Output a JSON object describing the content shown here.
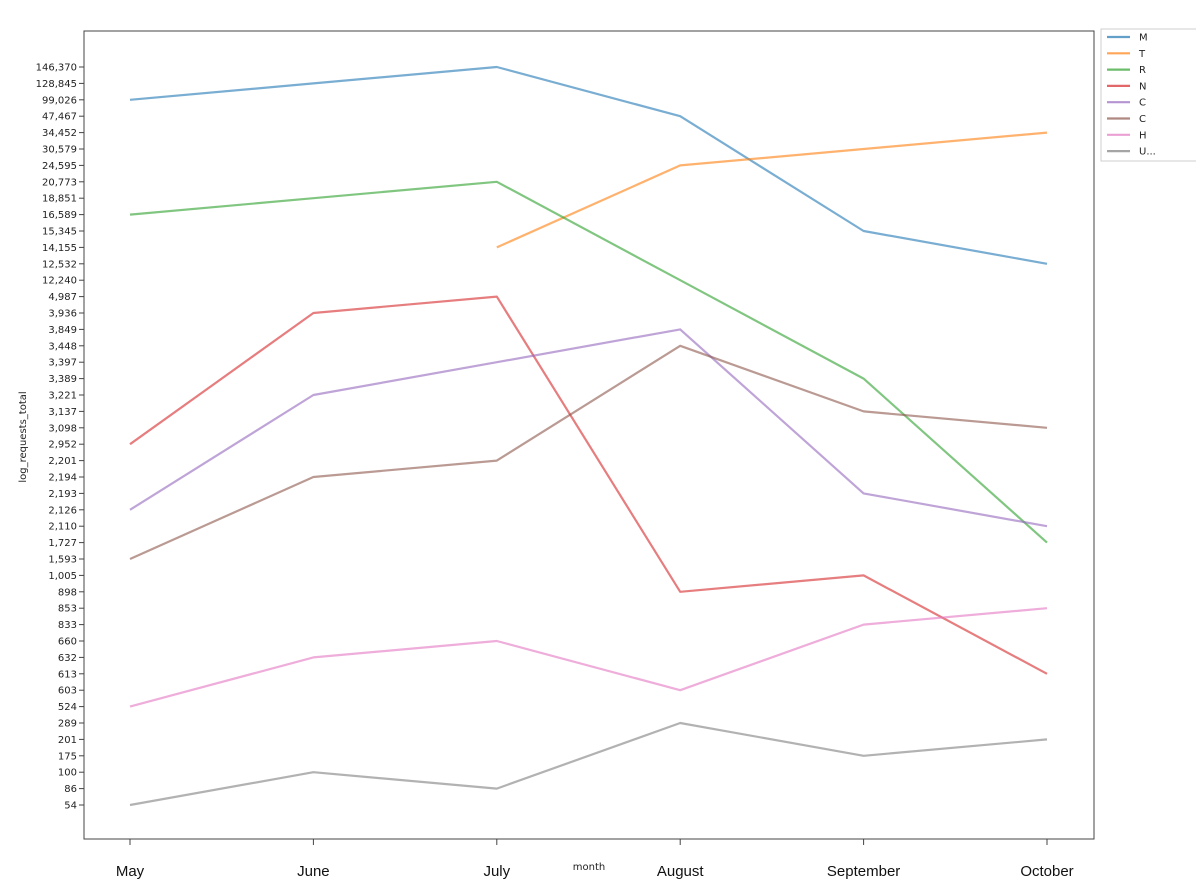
{
  "chart_data": {
    "type": "line",
    "xlabel": "month",
    "ylabel": "log_requests_total",
    "categories": [
      "May",
      "June",
      "July",
      "August",
      "September",
      "October"
    ],
    "ytick_labels": [
      "146,370",
      "128,845",
      "99,026",
      "47,467",
      "34,452",
      "30,579",
      "24,595",
      "20,773",
      "18,851",
      "16,589",
      "15,345",
      "14,155",
      "12,532",
      "12,240",
      "4,987",
      "3,936",
      "3,849",
      "3,448",
      "3,397",
      "3,389",
      "3,221",
      "3,137",
      "3,098",
      "2,952",
      "2,201",
      "2,194",
      "2,193",
      "2,126",
      "2,110",
      "1,727",
      "1,593",
      "1,005",
      "898",
      "853",
      "833",
      "660",
      "632",
      "613",
      "603",
      "524",
      "289",
      "201",
      "175",
      "100",
      "86",
      "54"
    ],
    "grid": false,
    "legend_position": "outside-top-right",
    "series": [
      {
        "name": "M",
        "color": "#1f77b4",
        "values": [
          "99,026",
          "128,845",
          "146,370",
          "47,467",
          "15,345",
          "12,532"
        ]
      },
      {
        "name": "T",
        "color": "#ff7f0e",
        "values": [
          null,
          null,
          "14,155",
          "24,595",
          "30,579",
          "34,452"
        ]
      },
      {
        "name": "R",
        "color": "#2ca02c",
        "values": [
          "16,589",
          "18,851",
          "20,773",
          "12,240",
          "3,389",
          "1,727"
        ]
      },
      {
        "name": "N",
        "color": "#d62728",
        "values": [
          "2,952",
          "3,936",
          "4,987",
          "898",
          "1,005",
          "613"
        ]
      },
      {
        "name": "C",
        "color": "#9467bd",
        "values": [
          "2,126",
          "3,221",
          "3,397",
          "3,849",
          "2,193",
          "2,110"
        ]
      },
      {
        "name": "C",
        "color": "#8c564b",
        "values": [
          "1,593",
          "2,194",
          "2,201",
          "3,448",
          "3,137",
          "3,098"
        ]
      },
      {
        "name": "H",
        "color": "#e377c2",
        "values": [
          "524",
          "632",
          "660",
          "603",
          "833",
          "853"
        ]
      },
      {
        "name": "U...",
        "color": "#7f7f7f",
        "values": [
          "54",
          "100",
          "86",
          "289",
          "175",
          "201"
        ]
      }
    ]
  }
}
